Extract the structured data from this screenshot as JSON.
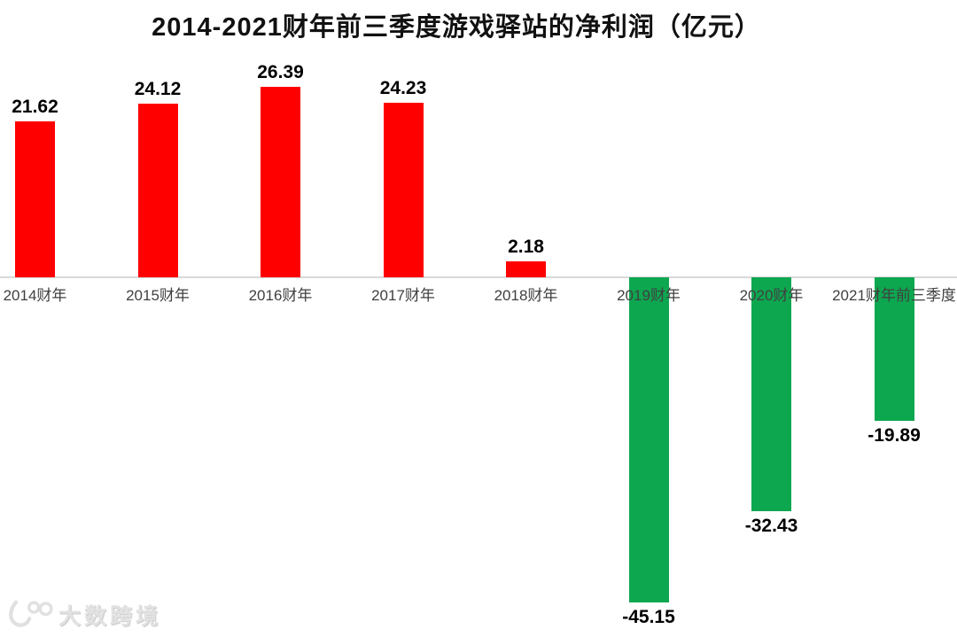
{
  "title": "2014-2021财年前三季度游戏驿站的净利润（亿元）",
  "chart_data": {
    "type": "bar",
    "title": "2014-2021财年前三季度游戏驿站的净利润（亿元）",
    "unit": "亿元",
    "categories": [
      "2014财年",
      "2015财年",
      "2016财年",
      "2017财年",
      "2018财年",
      "2019财年",
      "2020财年",
      "2021财年前三季度"
    ],
    "values": [
      21.62,
      24.12,
      26.39,
      24.23,
      2.18,
      -45.15,
      -32.43,
      -19.89
    ],
    "value_labels": [
      "21.62",
      "24.12",
      "26.39",
      "24.23",
      "2.18",
      "-45.15",
      "-32.43",
      "-19.89"
    ],
    "series_name": "净利润",
    "positive_color": "#fe0000",
    "negative_color": "#0da750",
    "axis_color": "#d9d9d9",
    "baseline": 0,
    "grid": false,
    "legend": false,
    "data_labels": true,
    "xlabel": "",
    "ylabel": ""
  },
  "watermark": {
    "logo_text": "100",
    "text": "大数跨境"
  }
}
